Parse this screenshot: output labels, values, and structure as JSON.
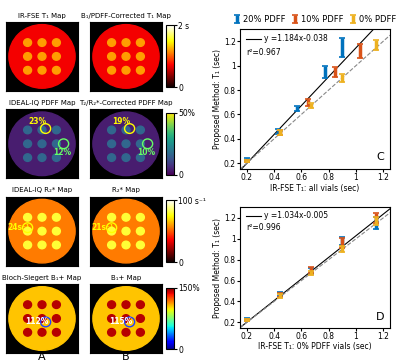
{
  "chart_data": [
    {
      "type": "scatter",
      "panel_label": "C",
      "xlabel": "IR-FSE T₁: all vials (sec)",
      "ylabel": "Proposed Method: T₁ (sec)",
      "xlim": [
        0.15,
        1.25
      ],
      "ylim": [
        0.15,
        1.3
      ],
      "xticks": [
        0.2,
        0.4,
        0.6,
        0.8,
        1,
        1.2
      ],
      "yticks": [
        0.2,
        0.4,
        0.6,
        0.8,
        1,
        1.2
      ],
      "legend": "top",
      "series": [
        {
          "name": "20% PDFF",
          "color": "#0072BD",
          "marker": "none",
          "x": [
            0.2,
            0.43,
            0.57,
            0.77,
            0.9
          ],
          "values": [
            0.23,
            0.46,
            0.65,
            0.95,
            1.15
          ],
          "errors": [
            0.01,
            0.02,
            0.02,
            0.05,
            0.08
          ]
        },
        {
          "name": "10% PDFF",
          "color": "#D95319",
          "marker": "none",
          "x": [
            0.2,
            0.44,
            0.65,
            0.85,
            1.03
          ],
          "values": [
            0.22,
            0.45,
            0.7,
            0.95,
            1.12
          ],
          "errors": [
            0.01,
            0.02,
            0.03,
            0.04,
            0.06
          ]
        },
        {
          "name": "0% PDFF",
          "color": "#EDB120",
          "marker": "none",
          "x": [
            0.2,
            0.44,
            0.67,
            0.9,
            1.15
          ],
          "values": [
            0.22,
            0.45,
            0.67,
            0.9,
            1.17
          ],
          "errors": [
            0.01,
            0.02,
            0.02,
            0.03,
            0.04
          ]
        }
      ],
      "lines": [
        {
          "slope": 1.184,
          "intercept": -0.038,
          "color": "#000000",
          "line_style": "solid"
        },
        {
          "slope": 1,
          "intercept": 0,
          "color": "#888888",
          "line_style": "dashed"
        }
      ],
      "annotations": [
        "y =1.184x-0.038",
        "r²=0.967"
      ]
    },
    {
      "type": "scatter",
      "panel_label": "D",
      "xlabel": "IR-FSE T₁: 0% PDFF vials (sec)",
      "ylabel": "Proposed Method: T₁ (sec)",
      "xlim": [
        0.15,
        1.25
      ],
      "ylim": [
        0.15,
        1.3
      ],
      "xticks": [
        0.2,
        0.4,
        0.6,
        0.8,
        1,
        1.2
      ],
      "yticks": [
        0.2,
        0.4,
        0.6,
        0.8,
        1,
        1.2
      ],
      "series": [
        {
          "name": "20% PDFF",
          "color": "#0072BD",
          "marker": "none",
          "x": [
            0.2,
            0.44,
            0.67,
            0.9,
            1.15
          ],
          "values": [
            0.23,
            0.47,
            0.69,
            0.98,
            1.15
          ],
          "errors": [
            0.01,
            0.02,
            0.03,
            0.04,
            0.06
          ]
        },
        {
          "name": "10% PDFF",
          "color": "#D95319",
          "marker": "none",
          "x": [
            0.2,
            0.44,
            0.67,
            0.9,
            1.15
          ],
          "values": [
            0.22,
            0.46,
            0.7,
            0.96,
            1.2
          ],
          "errors": [
            0.01,
            0.02,
            0.03,
            0.05,
            0.05
          ]
        },
        {
          "name": "0% PDFF",
          "color": "#EDB120",
          "marker": "none",
          "x": [
            0.2,
            0.44,
            0.67,
            0.9,
            1.15
          ],
          "values": [
            0.22,
            0.45,
            0.67,
            0.9,
            1.17
          ],
          "errors": [
            0.01,
            0.02,
            0.02,
            0.03,
            0.04
          ]
        }
      ],
      "lines": [
        {
          "slope": 1.034,
          "intercept": -0.005,
          "color": "#000000",
          "line_style": "solid"
        },
        {
          "slope": 1,
          "intercept": 0,
          "color": "#888888",
          "line_style": "dashed"
        }
      ],
      "annotations": [
        "y =1.034x-0.005",
        "r²=0.996"
      ]
    }
  ],
  "image_panels": [
    {
      "label": "A",
      "maps": [
        {
          "title": "IR-FSE T₁ Map",
          "labels": []
        },
        {
          "title": "IDEAL-IQ PDFF Map",
          "labels": [
            "23%",
            "12%"
          ]
        },
        {
          "title": "IDEAL-IQ R₂* Map",
          "labels": [
            "24s⁻¹"
          ]
        },
        {
          "title": "Bloch-Siegert B₁+ Map",
          "labels": [
            "112%"
          ]
        }
      ]
    },
    {
      "label": "B",
      "maps": [
        {
          "title": "B₁/PDFF-Corrected T₁ Map",
          "labels": []
        },
        {
          "title": "T₂/R₂*-Corrected PDFF Map",
          "labels": [
            "19%",
            "10%"
          ]
        },
        {
          "title": "R₂* Map",
          "labels": [
            "21s⁻¹"
          ]
        },
        {
          "title": "B₁+ Map",
          "labels": [
            "115%"
          ]
        }
      ]
    }
  ],
  "colorbars": [
    {
      "range": [
        0,
        2
      ],
      "ticks": [
        {
          "value": 2,
          "label": "2 s"
        },
        0
      ]
    },
    {
      "range": [
        0,
        50
      ],
      "ticks": [
        {
          "value": 50,
          "label": "50%"
        },
        0
      ]
    },
    {
      "range": [
        0,
        100
      ],
      "ticks": [
        {
          "value": 100,
          "label": "100 s⁻¹"
        },
        0
      ]
    },
    {
      "range": [
        0,
        150
      ],
      "ticks": [
        {
          "value": 150,
          "label": "150%"
        },
        0
      ]
    }
  ]
}
